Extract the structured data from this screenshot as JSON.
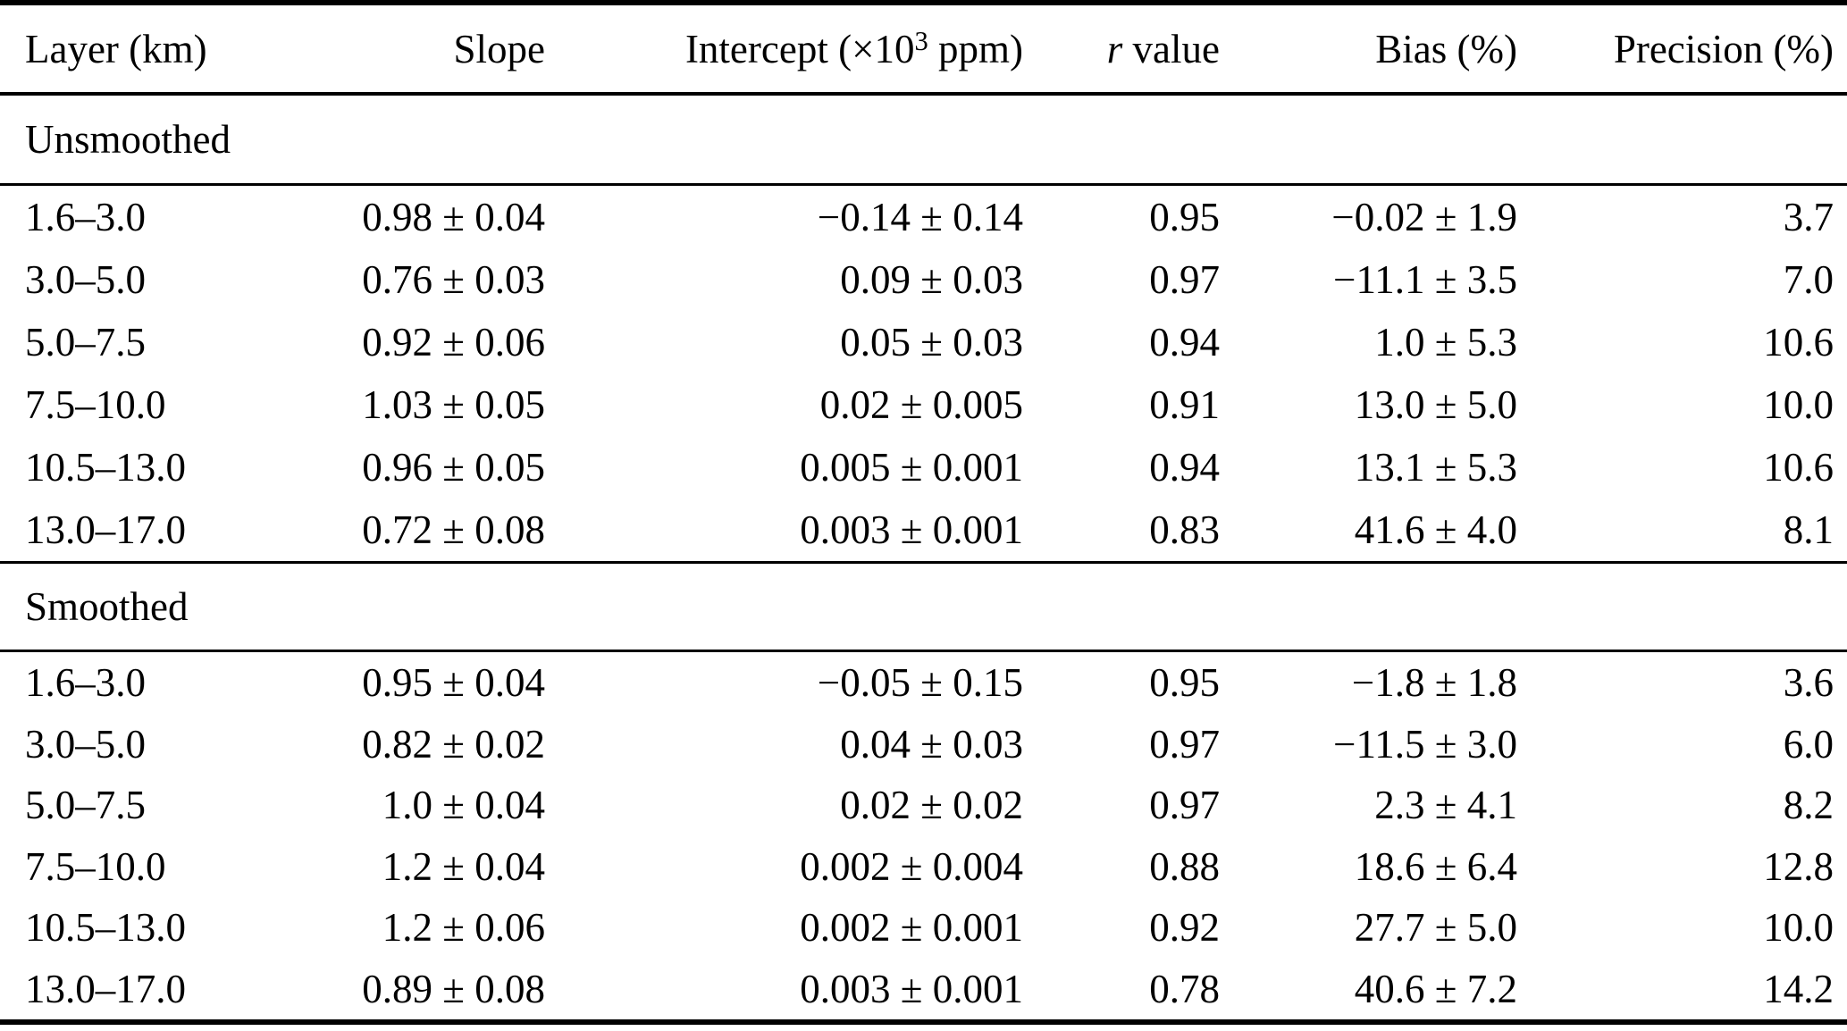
{
  "table": {
    "columns": [
      {
        "key": "layer",
        "label": "Layer (km)"
      },
      {
        "key": "slope",
        "label": "Slope"
      },
      {
        "key": "intercept",
        "label_prefix": "Intercept (×10",
        "label_sup": "3",
        "label_suffix": " ppm)"
      },
      {
        "key": "r-value",
        "label_italic": "r",
        "label_rest": " value"
      },
      {
        "key": "bias",
        "label": "Bias (%)"
      },
      {
        "key": "precision",
        "label": "Precision (%)"
      }
    ],
    "sections": [
      {
        "title": "Unsmoothed",
        "rows": [
          [
            "1.6–3.0",
            "0.98 ± 0.04",
            "−0.14 ± 0.14",
            "0.95",
            "−0.02 ± 1.9",
            "3.7"
          ],
          [
            "3.0–5.0",
            "0.76 ± 0.03",
            "0.09 ± 0.03",
            "0.97",
            "−11.1 ± 3.5",
            "7.0"
          ],
          [
            "5.0–7.5",
            "0.92 ± 0.06",
            "0.05 ± 0.03",
            "0.94",
            "1.0 ± 5.3",
            "10.6"
          ],
          [
            "7.5–10.0",
            "1.03 ± 0.05",
            "0.02 ± 0.005",
            "0.91",
            "13.0 ± 5.0",
            "10.0"
          ],
          [
            "10.5–13.0",
            "0.96 ± 0.05",
            "0.005 ± 0.001",
            "0.94",
            "13.1 ± 5.3",
            "10.6"
          ],
          [
            "13.0–17.0",
            "0.72 ± 0.08",
            "0.003 ± 0.001",
            "0.83",
            "41.6 ± 4.0",
            "8.1"
          ]
        ]
      },
      {
        "title": "Smoothed",
        "rows": [
          [
            "1.6–3.0",
            "0.95 ± 0.04",
            "−0.05 ± 0.15",
            "0.95",
            "−1.8 ± 1.8",
            "3.6"
          ],
          [
            "3.0–5.0",
            "0.82 ± 0.02",
            "0.04 ± 0.03",
            "0.97",
            "−11.5 ± 3.0",
            "6.0"
          ],
          [
            "5.0–7.5",
            "1.0 ± 0.04",
            "0.02 ± 0.02",
            "0.97",
            "2.3 ± 4.1",
            "8.2"
          ],
          [
            "7.5–10.0",
            "1.2 ± 0.04",
            "0.002 ± 0.004",
            "0.88",
            "18.6 ± 6.4",
            "12.8"
          ],
          [
            "10.5–13.0",
            "1.2 ± 0.06",
            "0.002 ± 0.001",
            "0.92",
            "27.7 ± 5.0",
            "10.0"
          ],
          [
            "13.0–17.0",
            "0.89 ± 0.08",
            "0.003 ± 0.001",
            "0.78",
            "40.6 ± 7.2",
            "14.2"
          ]
        ]
      }
    ],
    "text_color": "#000000",
    "background_color": "#ffffff"
  }
}
